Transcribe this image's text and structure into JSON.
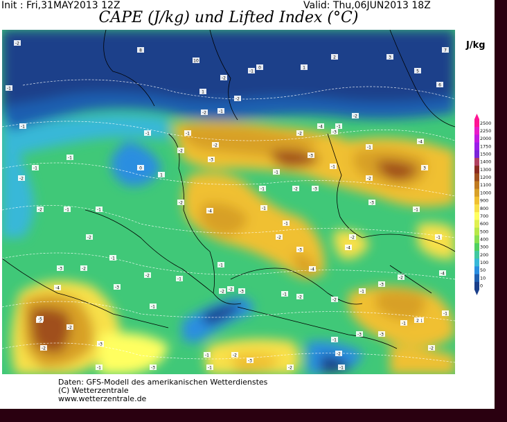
{
  "header": {
    "init": "Init : Fri,31MAY2013 12Z",
    "valid": "Valid: Thu,06JUN2013 18Z",
    "title": "CAPE (J/kg) und Lifted Index (°C)",
    "unit": "J/kg"
  },
  "colorbar": {
    "levels": [
      "2500",
      "2250",
      "2000",
      "1750",
      "1500",
      "1400",
      "1300",
      "1200",
      "1100",
      "1000",
      "900",
      "800",
      "700",
      "600",
      "500",
      "400",
      "300",
      "200",
      "100",
      "50",
      "10",
      "0"
    ],
    "colors": [
      "#ff1493",
      "#e81cc8",
      "#c21ae0",
      "#9a1ee8",
      "#7a24d8",
      "#b04060",
      "#8a2a20",
      "#a0501e",
      "#c07a20",
      "#d8a028",
      "#f0c030",
      "#f8e048",
      "#ffff60",
      "#e0f050",
      "#b8e848",
      "#88e050",
      "#50d060",
      "#40c8a0",
      "#38b8d8",
      "#2a8ee0",
      "#1f5fb0",
      "#1a3f8a"
    ]
  },
  "map": {
    "li_labels": [
      "-2",
      "-1",
      "-1",
      "-2",
      "-1",
      "-1",
      "-2",
      "-1",
      "-1",
      "-2",
      "-3",
      "-2",
      "-1",
      "-4",
      "-3",
      "-2",
      "-3",
      "-2",
      "-1",
      "-4",
      "-1",
      "-2",
      "-2",
      "-3",
      "-2",
      "-3",
      "-4",
      "-2",
      "-1",
      "-3",
      "-2",
      "-1",
      "-1",
      "-4",
      "-1",
      "-1",
      "-1",
      "-3",
      "-2",
      "-4",
      "-2",
      "-1",
      "-2",
      "-3",
      "-1",
      "-3",
      "-2",
      "-1",
      "-2",
      "-1",
      "-2",
      "-2",
      "-1",
      "-5",
      "-2",
      "-1",
      "-3",
      "-3",
      "-1",
      "-2",
      "-3",
      "-1",
      "-2",
      "-1",
      "-2",
      "-1",
      "-3",
      "-3",
      "-1",
      "-2",
      "-1",
      "-2",
      "-1",
      "-4",
      "-2",
      "-3",
      "-1",
      "-1",
      "-3",
      "-4",
      "-1",
      "-2",
      "-2",
      "-1",
      "-2",
      "0",
      "1",
      "2",
      "3",
      "5",
      "6",
      "7",
      "8",
      "10",
      "1",
      "-1",
      "0",
      "1",
      "2",
      "3",
      "-2",
      "-4"
    ]
  },
  "credits": {
    "line1": "Daten: GFS-Modell des amerikanischen Wetterdienstes",
    "line2": "(C) Wetterzentrale",
    "line3": "www.wetterzentrale.de"
  }
}
